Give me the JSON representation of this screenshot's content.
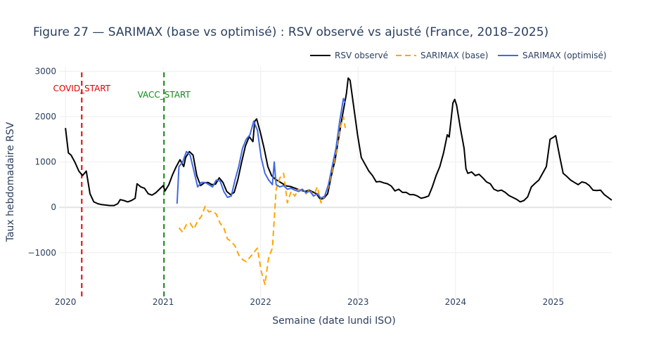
{
  "chart_data": {
    "type": "line",
    "title": "Figure 27 — SARIMAX (base vs optimisé) : RSV observé vs ajusté (France, 2018–2025)",
    "xlabel": "Semaine (date lundi ISO)",
    "ylabel": "Taux hebdomadaire RSV",
    "x_range": [
      "2019-12-08",
      "2025-08-08"
    ],
    "ylim": [
      -2010,
      3100
    ],
    "x_ticks": [
      "2020",
      "2021",
      "2022",
      "2023",
      "2024",
      "2025"
    ],
    "y_ticks": [
      -1000,
      0,
      1000,
      2000,
      3000
    ],
    "y_tick_labels": [
      "−1000",
      "0",
      "1000",
      "2000",
      "3000"
    ],
    "grid": true,
    "legend_position": "top-right",
    "annotations": [
      {
        "label": "COVID_START",
        "date": "2020-03-02",
        "color": "#e00000"
      },
      {
        "label": "VACC_START",
        "date": "2021-01-04",
        "color": "#118811"
      }
    ],
    "series": [
      {
        "name": "RSV observé",
        "color": "#000000",
        "dash": "solid",
        "points": [
          [
            "2020-01-01",
            1750
          ],
          [
            "2020-01-12",
            1200
          ],
          [
            "2020-01-22",
            1150
          ],
          [
            "2020-02-05",
            1000
          ],
          [
            "2020-02-20",
            800
          ],
          [
            "2020-03-05",
            700
          ],
          [
            "2020-03-19",
            800
          ],
          [
            "2020-04-02",
            300
          ],
          [
            "2020-04-16",
            120
          ],
          [
            "2020-05-01",
            80
          ],
          [
            "2020-05-15",
            60
          ],
          [
            "2020-06-01",
            50
          ],
          [
            "2020-06-15",
            40
          ],
          [
            "2020-07-01",
            40
          ],
          [
            "2020-07-15",
            80
          ],
          [
            "2020-07-24",
            170
          ],
          [
            "2020-08-07",
            150
          ],
          [
            "2020-08-21",
            120
          ],
          [
            "2020-09-04",
            150
          ],
          [
            "2020-09-18",
            200
          ],
          [
            "2020-09-25",
            520
          ],
          [
            "2020-10-09",
            450
          ],
          [
            "2020-10-23",
            420
          ],
          [
            "2020-11-06",
            300
          ],
          [
            "2020-11-20",
            270
          ],
          [
            "2020-12-04",
            320
          ],
          [
            "2020-12-18",
            400
          ],
          [
            "2021-01-01",
            480
          ],
          [
            "2021-01-08",
            360
          ],
          [
            "2021-01-22",
            500
          ],
          [
            "2021-02-05",
            720
          ],
          [
            "2021-02-19",
            900
          ],
          [
            "2021-03-05",
            1050
          ],
          [
            "2021-03-19",
            900
          ],
          [
            "2021-03-26",
            1100
          ],
          [
            "2021-04-09",
            1230
          ],
          [
            "2021-04-23",
            1150
          ],
          [
            "2021-05-07",
            700
          ],
          [
            "2021-05-21",
            480
          ],
          [
            "2021-06-04",
            540
          ],
          [
            "2021-06-18",
            550
          ],
          [
            "2021-07-02",
            500
          ],
          [
            "2021-07-16",
            510
          ],
          [
            "2021-07-30",
            650
          ],
          [
            "2021-08-13",
            550
          ],
          [
            "2021-08-27",
            350
          ],
          [
            "2021-09-10",
            280
          ],
          [
            "2021-09-24",
            330
          ],
          [
            "2021-10-08",
            620
          ],
          [
            "2021-10-22",
            1000
          ],
          [
            "2021-11-05",
            1350
          ],
          [
            "2021-11-19",
            1560
          ],
          [
            "2021-12-03",
            1450
          ],
          [
            "2021-12-10",
            1900
          ],
          [
            "2021-12-17",
            1950
          ],
          [
            "2021-12-31",
            1650
          ],
          [
            "2022-01-14",
            1300
          ],
          [
            "2022-01-28",
            900
          ],
          [
            "2022-02-11",
            700
          ],
          [
            "2022-02-25",
            620
          ],
          [
            "2022-03-11",
            570
          ],
          [
            "2022-03-25",
            520
          ],
          [
            "2022-04-08",
            470
          ],
          [
            "2022-04-22",
            460
          ],
          [
            "2022-05-06",
            430
          ],
          [
            "2022-05-20",
            400
          ],
          [
            "2022-06-03",
            370
          ],
          [
            "2022-06-17",
            350
          ],
          [
            "2022-07-01",
            380
          ],
          [
            "2022-07-15",
            340
          ],
          [
            "2022-07-29",
            300
          ],
          [
            "2022-08-12",
            180
          ],
          [
            "2022-08-26",
            200
          ],
          [
            "2022-09-09",
            300
          ],
          [
            "2022-09-23",
            700
          ],
          [
            "2022-10-07",
            1050
          ],
          [
            "2022-10-21",
            1550
          ],
          [
            "2022-11-04",
            2050
          ],
          [
            "2022-11-18",
            2500
          ],
          [
            "2022-11-25",
            2850
          ],
          [
            "2022-12-02",
            2800
          ],
          [
            "2022-12-16",
            2200
          ],
          [
            "2022-12-30",
            1600
          ],
          [
            "2023-01-13",
            1100
          ],
          [
            "2023-01-27",
            950
          ],
          [
            "2023-02-10",
            800
          ],
          [
            "2023-02-24",
            700
          ],
          [
            "2023-03-10",
            560
          ],
          [
            "2023-03-24",
            570
          ],
          [
            "2023-04-07",
            540
          ],
          [
            "2023-04-21",
            520
          ],
          [
            "2023-05-05",
            470
          ],
          [
            "2023-05-19",
            360
          ],
          [
            "2023-06-02",
            400
          ],
          [
            "2023-06-16",
            330
          ],
          [
            "2023-06-30",
            330
          ],
          [
            "2023-07-14",
            280
          ],
          [
            "2023-07-28",
            280
          ],
          [
            "2023-08-11",
            250
          ],
          [
            "2023-08-25",
            200
          ],
          [
            "2023-09-08",
            220
          ],
          [
            "2023-09-22",
            250
          ],
          [
            "2023-10-06",
            450
          ],
          [
            "2023-10-20",
            700
          ],
          [
            "2023-11-03",
            900
          ],
          [
            "2023-11-17",
            1200
          ],
          [
            "2023-12-01",
            1600
          ],
          [
            "2023-12-08",
            1550
          ],
          [
            "2023-12-22",
            2300
          ],
          [
            "2023-12-29",
            2380
          ],
          [
            "2024-01-05",
            2250
          ],
          [
            "2024-01-19",
            1750
          ],
          [
            "2024-02-02",
            1300
          ],
          [
            "2024-02-09",
            850
          ],
          [
            "2024-02-16",
            750
          ],
          [
            "2024-03-01",
            780
          ],
          [
            "2024-03-15",
            700
          ],
          [
            "2024-03-29",
            730
          ],
          [
            "2024-04-12",
            650
          ],
          [
            "2024-04-26",
            560
          ],
          [
            "2024-05-10",
            520
          ],
          [
            "2024-05-24",
            400
          ],
          [
            "2024-06-07",
            360
          ],
          [
            "2024-06-21",
            380
          ],
          [
            "2024-07-05",
            330
          ],
          [
            "2024-07-19",
            260
          ],
          [
            "2024-08-02",
            220
          ],
          [
            "2024-08-16",
            180
          ],
          [
            "2024-08-30",
            120
          ],
          [
            "2024-09-13",
            150
          ],
          [
            "2024-09-27",
            230
          ],
          [
            "2024-10-11",
            450
          ],
          [
            "2024-10-25",
            530
          ],
          [
            "2024-11-08",
            600
          ],
          [
            "2024-11-22",
            750
          ],
          [
            "2024-12-06",
            900
          ],
          [
            "2024-12-20",
            1500
          ],
          [
            "2025-01-03",
            1550
          ],
          [
            "2025-01-10",
            1580
          ],
          [
            "2025-01-24",
            1150
          ],
          [
            "2025-02-07",
            750
          ],
          [
            "2025-02-21",
            680
          ],
          [
            "2025-03-07",
            600
          ],
          [
            "2025-03-21",
            550
          ],
          [
            "2025-04-04",
            500
          ],
          [
            "2025-04-18",
            560
          ],
          [
            "2025-05-02",
            540
          ],
          [
            "2025-05-16",
            480
          ],
          [
            "2025-05-30",
            380
          ],
          [
            "2025-06-13",
            370
          ],
          [
            "2025-06-27",
            380
          ],
          [
            "2025-07-11",
            280
          ],
          [
            "2025-07-25",
            220
          ],
          [
            "2025-08-08",
            160
          ]
        ]
      },
      {
        "name": "SARIMAX (base)",
        "color": "#ffa500",
        "dash": "dashed",
        "points": [
          [
            "2021-03-01",
            -450
          ],
          [
            "2021-03-15",
            -550
          ],
          [
            "2021-03-29",
            -380
          ],
          [
            "2021-04-12",
            -350
          ],
          [
            "2021-04-26",
            -480
          ],
          [
            "2021-05-10",
            -300
          ],
          [
            "2021-05-24",
            -200
          ],
          [
            "2021-06-07",
            20
          ],
          [
            "2021-06-21",
            -100
          ],
          [
            "2021-07-05",
            -80
          ],
          [
            "2021-07-19",
            -150
          ],
          [
            "2021-08-02",
            -350
          ],
          [
            "2021-08-16",
            -450
          ],
          [
            "2021-08-30",
            -700
          ],
          [
            "2021-09-13",
            -750
          ],
          [
            "2021-09-27",
            -850
          ],
          [
            "2021-10-11",
            -1050
          ],
          [
            "2021-10-25",
            -1150
          ],
          [
            "2021-11-08",
            -1200
          ],
          [
            "2021-11-22",
            -1100
          ],
          [
            "2021-12-06",
            -1000
          ],
          [
            "2021-12-20",
            -900
          ],
          [
            "2022-01-03",
            -1400
          ],
          [
            "2022-01-17",
            -1700
          ],
          [
            "2022-01-31",
            -1100
          ],
          [
            "2022-02-14",
            -900
          ],
          [
            "2022-02-28",
            400
          ],
          [
            "2022-03-14",
            650
          ],
          [
            "2022-03-28",
            750
          ],
          [
            "2022-04-11",
            100
          ],
          [
            "2022-04-25",
            350
          ],
          [
            "2022-05-09",
            250
          ],
          [
            "2022-05-23",
            400
          ],
          [
            "2022-06-06",
            350
          ],
          [
            "2022-06-20",
            300
          ],
          [
            "2022-07-04",
            400
          ],
          [
            "2022-07-18",
            250
          ],
          [
            "2022-08-01",
            450
          ],
          [
            "2022-08-15",
            100
          ],
          [
            "2022-08-29",
            250
          ],
          [
            "2022-09-12",
            450
          ],
          [
            "2022-09-26",
            800
          ],
          [
            "2022-10-10",
            1200
          ],
          [
            "2022-10-24",
            1700
          ],
          [
            "2022-11-07",
            2000
          ],
          [
            "2022-11-14",
            1750
          ]
        ]
      },
      {
        "name": "SARIMAX (optimisé)",
        "color": "#4169e1",
        "dash": "solid",
        "points": [
          [
            "2021-02-22",
            80
          ],
          [
            "2021-03-01",
            900
          ],
          [
            "2021-03-15",
            1000
          ],
          [
            "2021-03-29",
            1230
          ],
          [
            "2021-04-12",
            1150
          ],
          [
            "2021-04-26",
            800
          ],
          [
            "2021-05-10",
            450
          ],
          [
            "2021-05-24",
            550
          ],
          [
            "2021-06-07",
            550
          ],
          [
            "2021-06-21",
            500
          ],
          [
            "2021-07-05",
            450
          ],
          [
            "2021-07-19",
            600
          ],
          [
            "2021-08-02",
            580
          ],
          [
            "2021-08-16",
            350
          ],
          [
            "2021-08-30",
            220
          ],
          [
            "2021-09-13",
            250
          ],
          [
            "2021-09-27",
            600
          ],
          [
            "2021-10-11",
            900
          ],
          [
            "2021-10-25",
            1300
          ],
          [
            "2021-11-08",
            1500
          ],
          [
            "2021-11-22",
            1600
          ],
          [
            "2021-12-06",
            1900
          ],
          [
            "2021-12-20",
            1700
          ],
          [
            "2022-01-03",
            1100
          ],
          [
            "2022-01-17",
            750
          ],
          [
            "2022-01-31",
            600
          ],
          [
            "2022-02-14",
            500
          ],
          [
            "2022-02-21",
            1000
          ],
          [
            "2022-02-28",
            500
          ],
          [
            "2022-03-14",
            450
          ],
          [
            "2022-03-28",
            480
          ],
          [
            "2022-04-11",
            400
          ],
          [
            "2022-04-25",
            420
          ],
          [
            "2022-05-09",
            380
          ],
          [
            "2022-05-23",
            350
          ],
          [
            "2022-06-06",
            400
          ],
          [
            "2022-06-20",
            320
          ],
          [
            "2022-07-04",
            360
          ],
          [
            "2022-07-18",
            250
          ],
          [
            "2022-08-01",
            300
          ],
          [
            "2022-08-15",
            200
          ],
          [
            "2022-08-29",
            250
          ],
          [
            "2022-09-12",
            500
          ],
          [
            "2022-09-26",
            900
          ],
          [
            "2022-10-10",
            1300
          ],
          [
            "2022-10-24",
            1900
          ],
          [
            "2022-11-07",
            2400
          ],
          [
            "2022-11-14",
            2300
          ]
        ]
      }
    ]
  }
}
